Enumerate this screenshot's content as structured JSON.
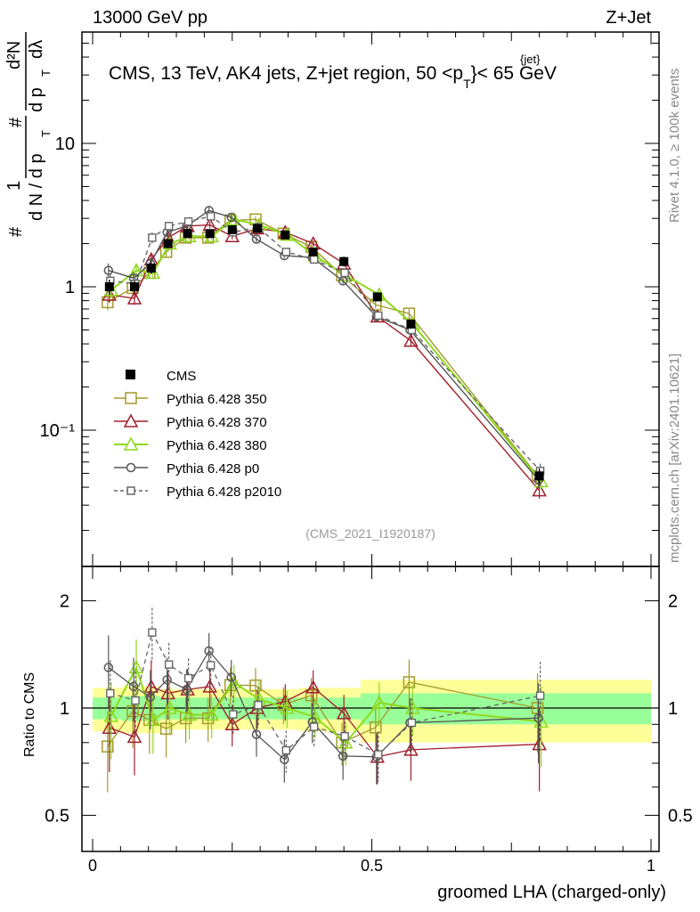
{
  "header": {
    "left": "13000 GeV pp",
    "right": "Z+Jet"
  },
  "side": {
    "rivet": "Rivet 4.1.0, ≥ 100k events",
    "mcplots": "mcplots.cern.ch [arXiv:2401.10621]"
  },
  "chart_data": {
    "type": "line",
    "title": "CMS, 13 TeV, AK4 jets, Z+jet region, 50 <p_T^{jet}< 65 GeV",
    "title_main": "CMS, 13 TeV, AK4 jets, Z+jet region, 50 <p",
    "title_sup": "{jet}",
    "title_sub": "T",
    "title_tail": "}< 65 GeV",
    "analysis_id": "(CMS_2021_I1920187)",
    "xlabel": "groomed LHA (charged-only)",
    "ylabel": "1/dN/dp_T  d²N/dp_T dλ",
    "ylabel_parts": [
      "#",
      "1",
      "d N / d p",
      "T",
      "#",
      "d²N",
      "d p",
      "T",
      "dλ"
    ],
    "ratio_ylabel": "Ratio to CMS",
    "xlim": [
      0,
      1
    ],
    "ylim": [
      0.015,
      80
    ],
    "yscale": "log",
    "ratio_ylim": [
      0.4,
      2.4
    ],
    "x_ticks": [
      "0",
      "0.5",
      "1"
    ],
    "y_ticks": [
      "10⁻¹",
      "1",
      "10"
    ],
    "ratio_ticks": [
      "0.5",
      "1",
      "2"
    ],
    "x": [
      0.03,
      0.075,
      0.105,
      0.135,
      0.17,
      0.21,
      0.25,
      0.295,
      0.345,
      0.395,
      0.45,
      0.51,
      0.57,
      0.8
    ],
    "cms": {
      "name": "CMS",
      "values": [
        1.0,
        1.0,
        1.35,
        2.0,
        2.35,
        2.35,
        2.5,
        2.55,
        2.3,
        1.75,
        1.5,
        0.85,
        0.55,
        0.048
      ],
      "errors": [
        0.12,
        0.1,
        0.12,
        0.14,
        0.14,
        0.13,
        0.12,
        0.12,
        0.1,
        0.08,
        0.07,
        0.05,
        0.04,
        0.006
      ]
    },
    "series": [
      {
        "name": "Pythia 6.428 350",
        "marker": "square",
        "dash": false,
        "values": [
          0.78,
          0.98,
          1.25,
          1.75,
          2.2,
          2.2,
          2.9,
          2.95,
          2.35,
          1.9,
          1.2,
          0.75,
          0.65,
          0.048
        ]
      },
      {
        "name": "Pythia 6.428 370",
        "marker": "triangle",
        "dash": false,
        "values": [
          0.88,
          0.83,
          1.55,
          2.2,
          2.65,
          2.7,
          2.25,
          2.55,
          2.4,
          2.0,
          1.45,
          0.62,
          0.42,
          0.038
        ]
      },
      {
        "name": "Pythia 6.428 380",
        "marker": "triangle",
        "dash": false,
        "values": [
          0.95,
          1.3,
          1.25,
          2.0,
          2.25,
          2.25,
          2.95,
          2.7,
          2.3,
          1.65,
          1.2,
          0.88,
          0.55,
          0.044
        ]
      },
      {
        "name": "Pythia 6.428 p0",
        "marker": "circle",
        "dash": false,
        "values": [
          1.3,
          1.15,
          1.45,
          2.4,
          2.65,
          3.4,
          3.05,
          2.15,
          1.65,
          1.6,
          1.1,
          0.62,
          0.5,
          0.045
        ]
      },
      {
        "name": "Pythia 6.428 p2010",
        "marker": "square",
        "dash": true,
        "values": [
          1.1,
          1.05,
          2.2,
          2.65,
          2.85,
          3.1,
          2.4,
          2.6,
          1.75,
          1.55,
          1.25,
          0.63,
          0.5,
          0.052
        ]
      }
    ],
    "ratio_band_inner": [
      0.07,
      0.08,
      0.08,
      0.07,
      0.07,
      0.07,
      0.07,
      0.07,
      0.07,
      0.07,
      0.07,
      0.1,
      0.1,
      0.1
    ],
    "ratio_band_outer": [
      0.14,
      0.15,
      0.15,
      0.13,
      0.13,
      0.13,
      0.13,
      0.13,
      0.13,
      0.14,
      0.14,
      0.2,
      0.2,
      0.2
    ],
    "colors": {
      "cms": "#000000",
      "s350": "#a39a2a",
      "s370": "#a0202d",
      "s380": "#8fd81e",
      "p0": "#555555",
      "p2010": "#666666",
      "band_inner": "#99ff99",
      "band_outer": "#ffff99"
    },
    "legend_position": "left, below middle"
  }
}
